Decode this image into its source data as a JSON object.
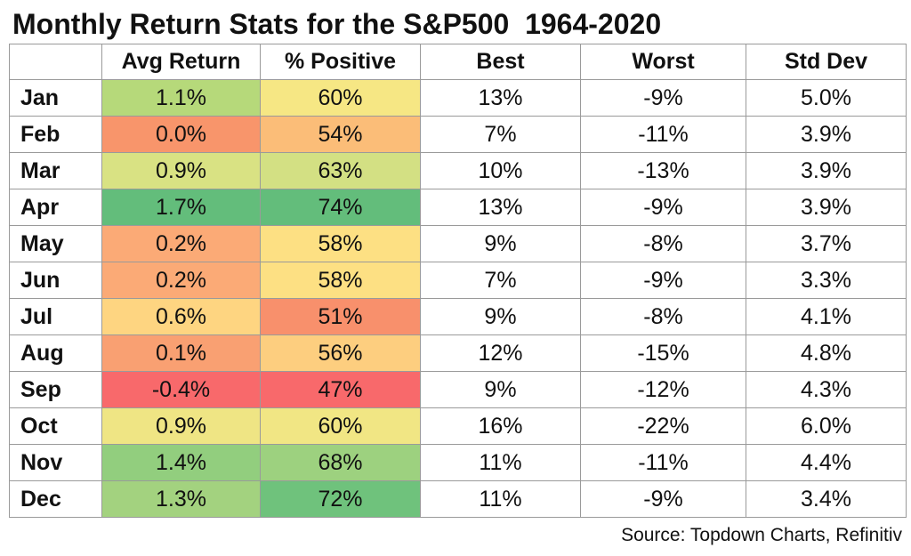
{
  "title": "Monthly Return Stats for the S&P500  1964-2020",
  "source": "Source: Topdown Charts, Refinitiv",
  "chart_data": {
    "type": "table",
    "title": "Monthly Return Stats for the S&P500  1964-2020",
    "columns": [
      "",
      "Avg Return",
      "% Positive",
      "Best",
      "Worst",
      "Std Dev"
    ],
    "rows": [
      {
        "month": "Jan",
        "avg_return": "1.1%",
        "pct_positive": "60%",
        "best": "13%",
        "worst": "-9%",
        "std_dev": "5.0%",
        "avg_color": "#b6d97a",
        "pos_color": "#f6e784"
      },
      {
        "month": "Feb",
        "avg_return": "0.0%",
        "pct_positive": "54%",
        "best": "7%",
        "worst": "-11%",
        "std_dev": "3.9%",
        "avg_color": "#f8956b",
        "pos_color": "#fbbd78"
      },
      {
        "month": "Mar",
        "avg_return": "0.9%",
        "pct_positive": "63%",
        "best": "10%",
        "worst": "-13%",
        "std_dev": "3.9%",
        "avg_color": "#d9e283",
        "pos_color": "#d3e083"
      },
      {
        "month": "Apr",
        "avg_return": "1.7%",
        "pct_positive": "74%",
        "best": "13%",
        "worst": "-9%",
        "std_dev": "3.9%",
        "avg_color": "#63bd7b",
        "pos_color": "#63bd7b"
      },
      {
        "month": "May",
        "avg_return": "0.2%",
        "pct_positive": "58%",
        "best": "9%",
        "worst": "-8%",
        "std_dev": "3.7%",
        "avg_color": "#fbaa76",
        "pos_color": "#fde083"
      },
      {
        "month": "Jun",
        "avg_return": "0.2%",
        "pct_positive": "58%",
        "best": "7%",
        "worst": "-9%",
        "std_dev": "3.3%",
        "avg_color": "#fbaa76",
        "pos_color": "#fde083"
      },
      {
        "month": "Jul",
        "avg_return": "0.6%",
        "pct_positive": "51%",
        "best": "9%",
        "worst": "-8%",
        "std_dev": "4.1%",
        "avg_color": "#fed581",
        "pos_color": "#f8906c"
      },
      {
        "month": "Aug",
        "avg_return": "0.1%",
        "pct_positive": "56%",
        "best": "12%",
        "worst": "-15%",
        "std_dev": "4.8%",
        "avg_color": "#f9a072",
        "pos_color": "#fdce7f"
      },
      {
        "month": "Sep",
        "avg_return": "-0.4%",
        "pct_positive": "47%",
        "best": "9%",
        "worst": "-12%",
        "std_dev": "4.3%",
        "avg_color": "#f8696b",
        "pos_color": "#f8696b"
      },
      {
        "month": "Oct",
        "avg_return": "0.9%",
        "pct_positive": "60%",
        "best": "16%",
        "worst": "-22%",
        "std_dev": "6.0%",
        "avg_color": "#efe584",
        "pos_color": "#f1e684"
      },
      {
        "month": "Nov",
        "avg_return": "1.4%",
        "pct_positive": "68%",
        "best": "11%",
        "worst": "-11%",
        "std_dev": "4.4%",
        "avg_color": "#92ce7e",
        "pos_color": "#9dd17f"
      },
      {
        "month": "Dec",
        "avg_return": "1.3%",
        "pct_positive": "72%",
        "best": "11%",
        "worst": "-9%",
        "std_dev": "3.4%",
        "avg_color": "#a3d27f",
        "pos_color": "#6fc27c"
      }
    ]
  }
}
